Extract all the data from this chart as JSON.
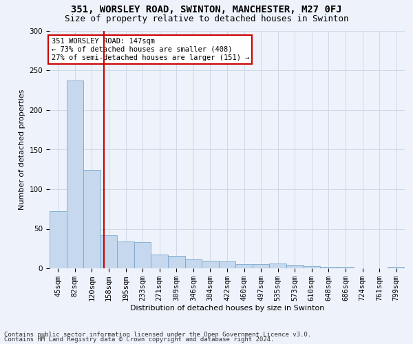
{
  "title_line1": "351, WORSLEY ROAD, SWINTON, MANCHESTER, M27 0FJ",
  "title_line2": "Size of property relative to detached houses in Swinton",
  "xlabel": "Distribution of detached houses by size in Swinton",
  "ylabel": "Number of detached properties",
  "categories": [
    "45sqm",
    "82sqm",
    "120sqm",
    "158sqm",
    "195sqm",
    "233sqm",
    "271sqm",
    "309sqm",
    "346sqm",
    "384sqm",
    "422sqm",
    "460sqm",
    "497sqm",
    "535sqm",
    "573sqm",
    "610sqm",
    "648sqm",
    "686sqm",
    "724sqm",
    "761sqm",
    "799sqm"
  ],
  "values": [
    72,
    237,
    124,
    42,
    34,
    33,
    17,
    16,
    11,
    10,
    9,
    5,
    5,
    6,
    4,
    3,
    2,
    2,
    0,
    0,
    2
  ],
  "bar_color": "#c5d8ed",
  "bar_edge_color": "#7aa8cc",
  "grid_color": "#d0d8e8",
  "background_color": "#eef2fa",
  "annotation_line1": "351 WORSLEY ROAD: 147sqm",
  "annotation_line2": "← 73% of detached houses are smaller (408)",
  "annotation_line3": "27% of semi-detached houses are larger (151) →",
  "annotation_box_color": "#ffffff",
  "annotation_box_edge": "#cc0000",
  "vline_color": "#cc0000",
  "vline_x": 2.72,
  "ylim": [
    0,
    300
  ],
  "yticks": [
    0,
    50,
    100,
    150,
    200,
    250,
    300
  ],
  "footnote_line1": "Contains HM Land Registry data © Crown copyright and database right 2024.",
  "footnote_line2": "Contains public sector information licensed under the Open Government Licence v3.0.",
  "title_fontsize": 10,
  "subtitle_fontsize": 9,
  "xlabel_fontsize": 8,
  "ylabel_fontsize": 8,
  "tick_fontsize": 7.5,
  "annot_fontsize": 7.5,
  "footnote_fontsize": 6.5
}
